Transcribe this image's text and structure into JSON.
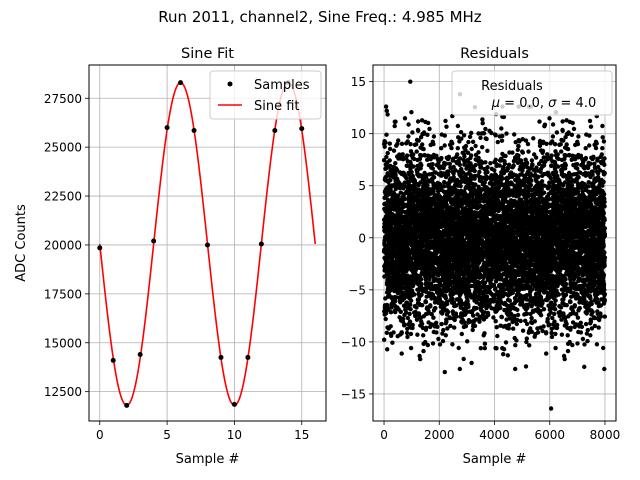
{
  "figure": {
    "suptitle": "Run 2011, channel2, Sine Freq.: 4.985 MHz"
  },
  "chart_data": [
    {
      "type": "line",
      "title": "Sine Fit",
      "xlabel": "Sample #",
      "ylabel": "ADC Counts",
      "xlim": [
        -0.8,
        16.8
      ],
      "ylim": [
        11000,
        29200
      ],
      "xticks": [
        0,
        5,
        10,
        15
      ],
      "yticks": [
        12500,
        15000,
        17500,
        20000,
        22500,
        25000,
        27500
      ],
      "grid": true,
      "legend_position": "top-right",
      "fit": {
        "amplitude": 8250,
        "offset": 20050,
        "period": 8.0,
        "phase_deg": 0,
        "x_range": [
          0,
          16
        ]
      },
      "series": [
        {
          "name": "Samples",
          "kind": "scatter",
          "color": "#000000",
          "x": [
            0,
            1,
            2,
            3,
            4,
            5,
            6,
            7,
            8,
            9,
            10,
            11,
            12,
            13,
            14,
            15
          ],
          "y": [
            19850,
            14100,
            11800,
            14400,
            20200,
            26000,
            28300,
            25850,
            20000,
            14250,
            11850,
            14250,
            20050,
            25850,
            28300,
            25950
          ]
        },
        {
          "name": "Sine fit",
          "kind": "line",
          "color": "#ff0000"
        }
      ]
    },
    {
      "type": "scatter",
      "title": "Residuals",
      "xlabel": "Sample #",
      "ylabel": "",
      "xlim": [
        -400,
        8400
      ],
      "ylim": [
        -17.6,
        16.6
      ],
      "xticks": [
        0,
        2000,
        4000,
        6000,
        8000
      ],
      "yticks": [
        -15,
        -10,
        -5,
        0,
        5,
        10,
        15
      ],
      "grid": true,
      "legend_position": "top-right",
      "legend_title": "Residuals",
      "legend_stats": {
        "mu": "0.0",
        "sigma": "4.0"
      },
      "n_points": 8000,
      "distribution": {
        "mean": 0.0,
        "std": 4.0
      },
      "series": [
        {
          "name": "",
          "color": "#000000"
        }
      ],
      "outliers": [
        {
          "x": 950,
          "y": 15.0
        },
        {
          "x": 2750,
          "y": 13.8
        },
        {
          "x": 6050,
          "y": -16.4
        },
        {
          "x": 7250,
          "y": -12.4
        },
        {
          "x": 100,
          "y": 12.2
        },
        {
          "x": 2200,
          "y": -12.9
        }
      ]
    }
  ]
}
